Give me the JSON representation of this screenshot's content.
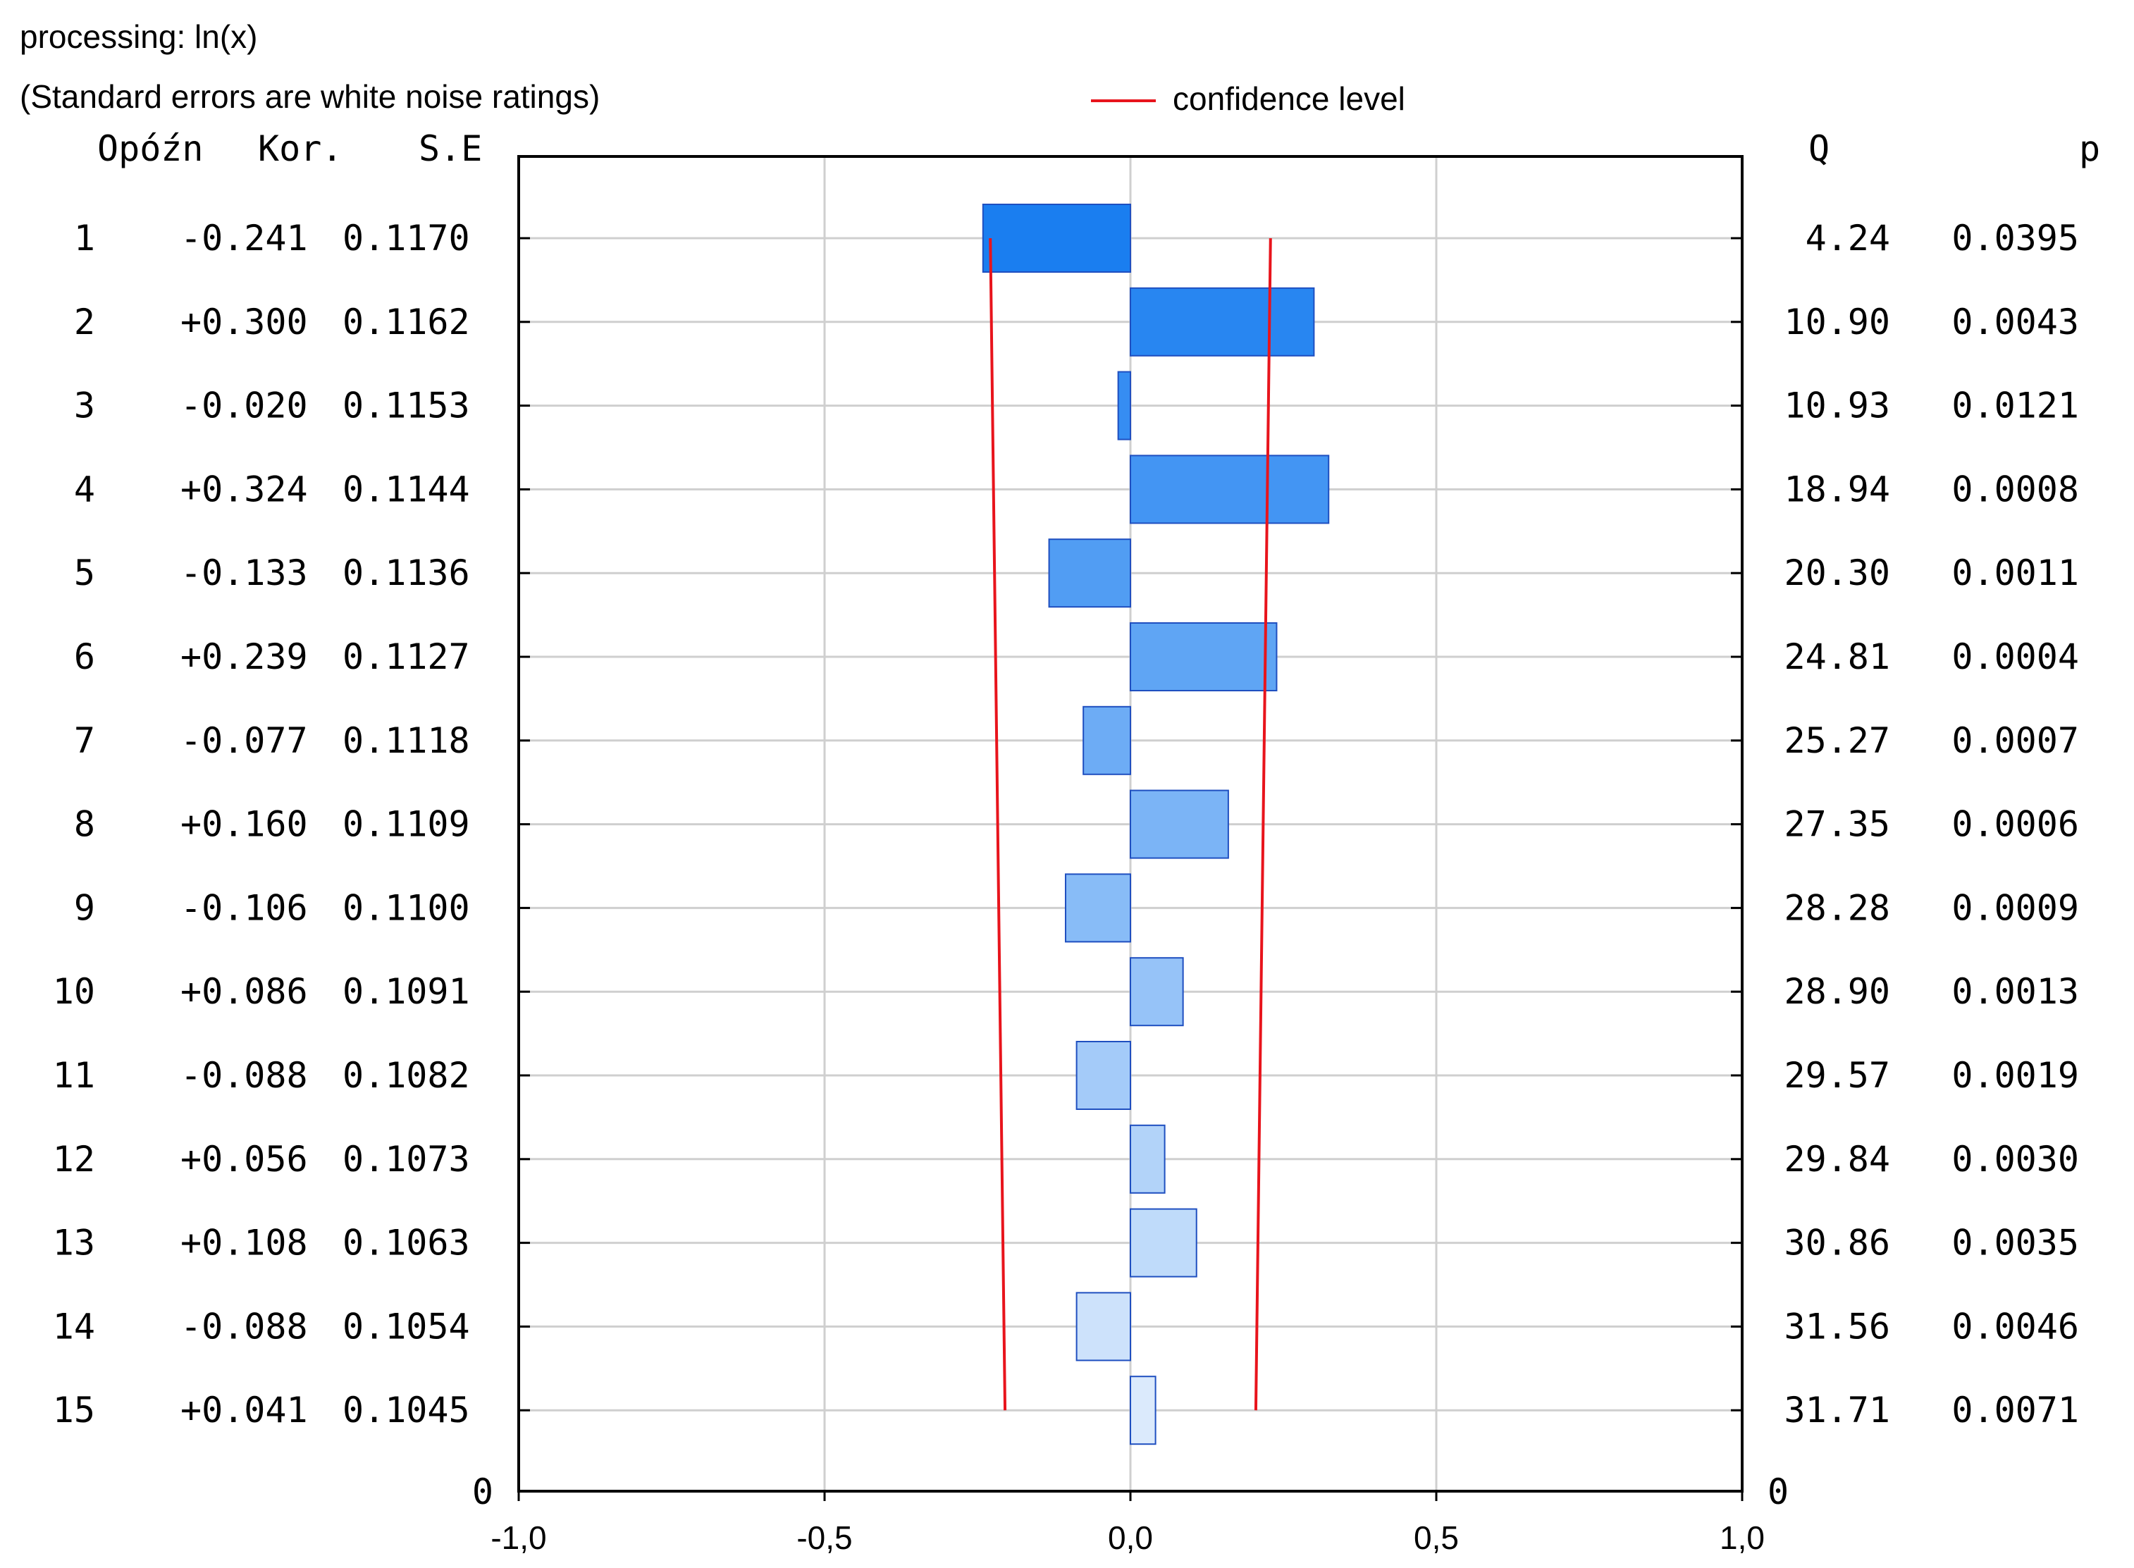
{
  "header": {
    "processing": "processing: ln(x)",
    "note": "(Standard errors are white noise ratings)",
    "legend_label": "confidence level"
  },
  "colors": {
    "bar_darkest": "#1a7ef0",
    "bar_lightest": "#dbeafc",
    "bar_stroke": "#1f4fc0",
    "confidence": "#e8141c",
    "grid": "#cfcfcf",
    "frame": "#000000"
  },
  "chart_data": {
    "type": "bar",
    "orientation": "horizontal",
    "title": "processing: ln(x)",
    "subtitle": "(Standard errors are white noise ratings)",
    "xlim": [
      -1.0,
      1.0
    ],
    "x_ticks": [
      -1.0,
      -0.5,
      0.0,
      0.5,
      1.0
    ],
    "x_tick_labels": [
      "-1,0",
      "-0,5",
      "0,0",
      "0,5",
      "1,0"
    ],
    "grid": true,
    "legend": {
      "position": "top-center",
      "entries": [
        "confidence level"
      ]
    },
    "columns": {
      "lag": "Opóźn",
      "corr": "Kor.",
      "se": "S.E",
      "q": "Q",
      "p": "p"
    },
    "bottom_row": {
      "lag": "0",
      "q": "0"
    },
    "rows": [
      {
        "lag": "1",
        "corr_label": "-0.241",
        "corr": -0.241,
        "se": "0.1170",
        "q": "4.24",
        "p": "0.0395",
        "conf": 0.229
      },
      {
        "lag": "2",
        "corr_label": "+0.300",
        "corr": 0.3,
        "se": "0.1162",
        "q": "10.90",
        "p": "0.0043",
        "conf": 0.228
      },
      {
        "lag": "3",
        "corr_label": "-0.020",
        "corr": -0.02,
        "se": "0.1153",
        "q": "10.93",
        "p": "0.0121",
        "conf": 0.226
      },
      {
        "lag": "4",
        "corr_label": "+0.324",
        "corr": 0.324,
        "se": "0.1144",
        "q": "18.94",
        "p": "0.0008",
        "conf": 0.224
      },
      {
        "lag": "5",
        "corr_label": "-0.133",
        "corr": -0.133,
        "se": "0.1136",
        "q": "20.30",
        "p": "0.0011",
        "conf": 0.223
      },
      {
        "lag": "6",
        "corr_label": "+0.239",
        "corr": 0.239,
        "se": "0.1127",
        "q": "24.81",
        "p": "0.0004",
        "conf": 0.221
      },
      {
        "lag": "7",
        "corr_label": "-0.077",
        "corr": -0.077,
        "se": "0.1118",
        "q": "25.27",
        "p": "0.0007",
        "conf": 0.219
      },
      {
        "lag": "8",
        "corr_label": "+0.160",
        "corr": 0.16,
        "se": "0.1109",
        "q": "27.35",
        "p": "0.0006",
        "conf": 0.217
      },
      {
        "lag": "9",
        "corr_label": "-0.106",
        "corr": -0.106,
        "se": "0.1100",
        "q": "28.28",
        "p": "0.0009",
        "conf": 0.216
      },
      {
        "lag": "10",
        "corr_label": "+0.086",
        "corr": 0.086,
        "se": "0.1091",
        "q": "28.90",
        "p": "0.0013",
        "conf": 0.214
      },
      {
        "lag": "11",
        "corr_label": "-0.088",
        "corr": -0.088,
        "se": "0.1082",
        "q": "29.57",
        "p": "0.0019",
        "conf": 0.212
      },
      {
        "lag": "12",
        "corr_label": "+0.056",
        "corr": 0.056,
        "se": "0.1073",
        "q": "29.84",
        "p": "0.0030",
        "conf": 0.21
      },
      {
        "lag": "13",
        "corr_label": "+0.108",
        "corr": 0.108,
        "se": "0.1063",
        "q": "30.86",
        "p": "0.0035",
        "conf": 0.208
      },
      {
        "lag": "14",
        "corr_label": "-0.088",
        "corr": -0.088,
        "se": "0.1054",
        "q": "31.56",
        "p": "0.0046",
        "conf": 0.207
      },
      {
        "lag": "15",
        "corr_label": "+0.041",
        "corr": 0.041,
        "se": "0.1045",
        "q": "31.71",
        "p": "0.0071",
        "conf": 0.205
      }
    ]
  }
}
